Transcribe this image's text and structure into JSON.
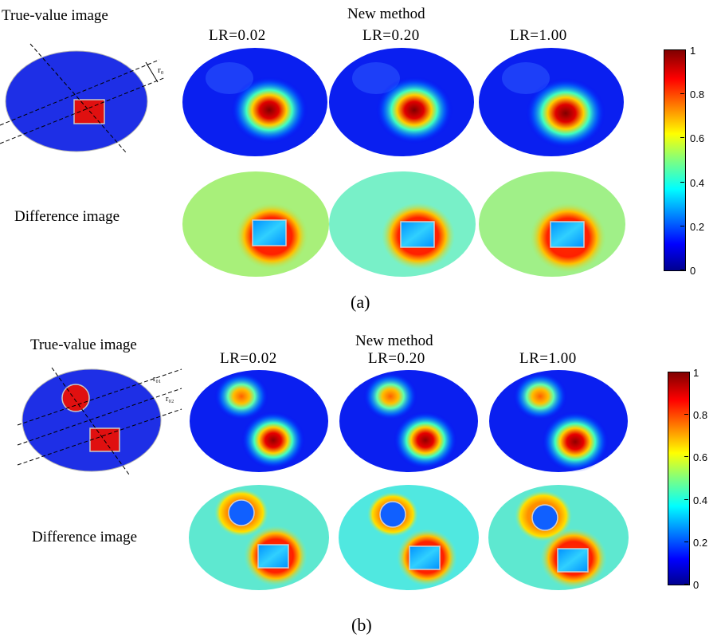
{
  "panel_a": {
    "true_value_label": "True-value image",
    "method_label": "New method",
    "lr_labels": [
      "LR=0.02",
      "LR=0.20",
      "LR=1.00"
    ],
    "difference_label": "Difference image",
    "radius_label": "r₀",
    "caption": "(a)"
  },
  "panel_b": {
    "true_value_label": "True-value image",
    "method_label": "New method",
    "lr_labels": [
      "LR=0.02",
      "LR=0.20",
      "LR=1.00"
    ],
    "difference_label": "Difference image",
    "radius_label_1": "r₀₁",
    "radius_label_2": "r₀₂",
    "caption": "(b)"
  },
  "colorbar": {
    "ticks": [
      "1",
      "0.8",
      "0.6",
      "0.4",
      "0.2",
      "0"
    ],
    "colormap": "jet"
  }
}
